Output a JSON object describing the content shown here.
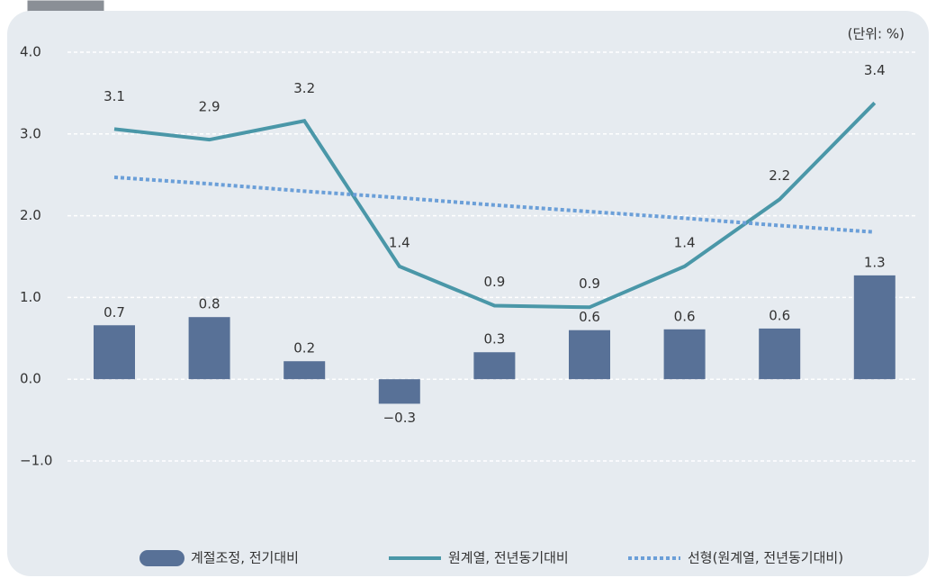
{
  "chart_data": {
    "type": "bar-line",
    "unit_label": "(단위: %)",
    "categories": [
      null,
      null,
      null,
      null,
      null,
      null,
      null,
      null,
      null
    ],
    "series": [
      {
        "name": "계절조정, 전기대비",
        "type": "bar",
        "color": "#587197",
        "values": [
          0.66,
          0.76,
          0.22,
          -0.3,
          0.33,
          0.6,
          0.61,
          0.62,
          1.27
        ],
        "value_labels": [
          "0.7",
          "0.8",
          "0.2",
          "−0.3",
          "0.3",
          "0.6",
          "0.6",
          "0.6",
          "1.3"
        ]
      },
      {
        "name": "원계열, 전년동기대비",
        "type": "line",
        "color": "#4a97a8",
        "values": [
          3.06,
          2.93,
          3.16,
          1.38,
          0.9,
          0.88,
          1.38,
          2.2,
          3.38
        ],
        "value_labels": [
          "3.1",
          "2.9",
          "3.2",
          "1.4",
          "0.9",
          "0.9",
          "1.4",
          "2.2",
          "3.4"
        ]
      },
      {
        "name": "선형(원계열, 전년동기대비)",
        "type": "dotted",
        "color": "#6b9fd8",
        "values": [
          2.47,
          2.39,
          2.3,
          2.22,
          2.13,
          2.05,
          1.97,
          1.88,
          1.8
        ]
      }
    ],
    "ylim": [
      -1.0,
      4.0
    ],
    "yticks": [
      {
        "value": -1,
        "label": "−1.0"
      },
      {
        "value": 0,
        "label": "0.0"
      },
      {
        "value": 1,
        "label": "1.0"
      },
      {
        "value": 2,
        "label": "2.0"
      },
      {
        "value": 3,
        "label": "3.0"
      },
      {
        "value": 4,
        "label": "4.0"
      }
    ],
    "grid": true
  }
}
